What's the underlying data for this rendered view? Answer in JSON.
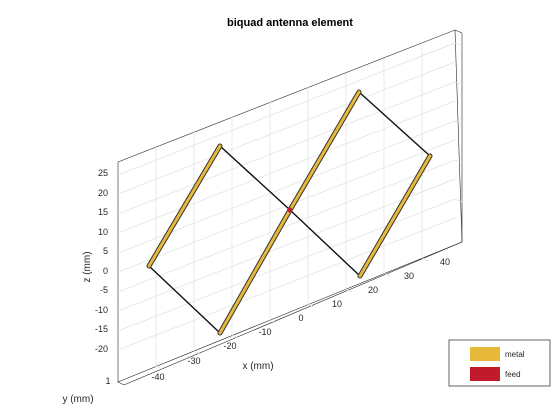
{
  "chart_data": {
    "type": "3d-wireframe",
    "title": "biquad antenna element",
    "xlabel": "x (mm)",
    "ylabel": "y (mm)",
    "zlabel": "z (mm)",
    "x_ticks": [
      "-40",
      "-30",
      "-20",
      "-10",
      "0",
      "10",
      "20",
      "30",
      "40"
    ],
    "z_ticks": [
      "25",
      "20",
      "15",
      "10",
      "5",
      "0",
      "-5",
      "-10",
      "-15",
      "-20"
    ],
    "y_ticks": [
      "1"
    ],
    "grid": true,
    "legend_position": "bottom-right",
    "legend": [
      {
        "label": "metal",
        "color": "#e6b93a"
      },
      {
        "label": "feed",
        "color": "#c01a2b"
      }
    ]
  }
}
